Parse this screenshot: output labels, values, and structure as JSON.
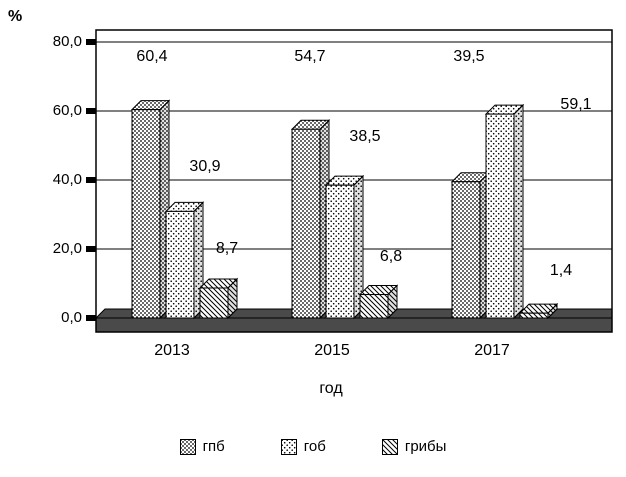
{
  "chart_data": {
    "type": "bar",
    "title": "",
    "ylabel": "%",
    "xlabel": "год",
    "categories": [
      "2013",
      "2015",
      "2017"
    ],
    "series": [
      {
        "name": "гпб",
        "values": [
          60.4,
          54.7,
          39.5
        ],
        "labels": [
          "60,4",
          "54,7",
          "39,5"
        ],
        "pattern": "dense-dots"
      },
      {
        "name": "гоб",
        "values": [
          30.9,
          38.5,
          59.1
        ],
        "labels": [
          "30,9",
          "38,5",
          "59,1"
        ],
        "pattern": "light-dots"
      },
      {
        "name": "грибы",
        "values": [
          8.7,
          6.8,
          1.4
        ],
        "labels": [
          "8,7",
          "6,8",
          "1,4"
        ],
        "pattern": "diagonal-hatch"
      }
    ],
    "ylim": [
      0,
      80
    ],
    "ytick_step": 20,
    "yticks": [
      "80,0",
      "60,0",
      "40,0",
      "20,0",
      "0,0"
    ],
    "grid": true,
    "legend_position": "bottom",
    "effect": "3d",
    "colors": {
      "floor": "#4a4a4a",
      "background": "#ffffff",
      "bar_fill": "#ffffff",
      "bar_stroke": "#000000",
      "text": "#000000"
    }
  }
}
